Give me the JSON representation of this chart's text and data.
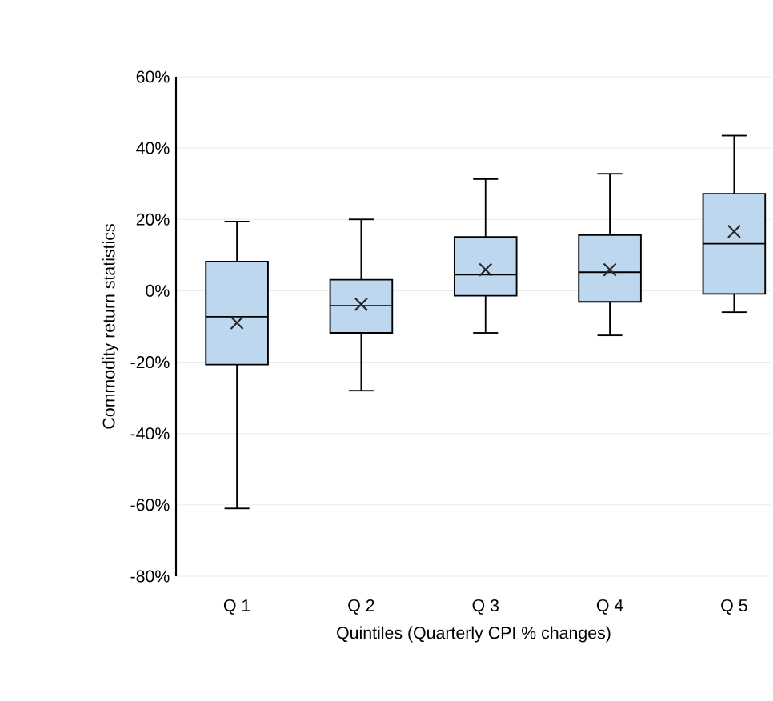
{
  "chart_data": {
    "type": "box",
    "xlabel": "Quintiles (Quarterly CPI % changes)",
    "ylabel": "Commodity return statistics",
    "categories": [
      "Q 1",
      "Q 2",
      "Q 3",
      "Q 4",
      "Q 5"
    ],
    "series": [
      {
        "color": "#bdd7ee",
        "boxes": [
          {
            "low": -61,
            "q1": -20.7,
            "median": -7.3,
            "q3": 8.2,
            "high": 19.4,
            "mean": -9
          },
          {
            "low": -28,
            "q1": -11.8,
            "median": -4.2,
            "q3": 3.1,
            "high": 20,
            "mean": -3.8
          },
          {
            "low": -11.8,
            "q1": -1.4,
            "median": 4.5,
            "q3": 15.1,
            "high": 31.3,
            "mean": 5.9
          },
          {
            "low": -12.5,
            "q1": -3.1,
            "median": 5.2,
            "q3": 15.6,
            "high": 32.8,
            "mean": 5.9
          },
          {
            "low": -6,
            "q1": -0.9,
            "median": 13.2,
            "q3": 27.2,
            "high": 43.5,
            "mean": 16.6
          }
        ]
      }
    ],
    "ylim": [
      -80,
      60
    ],
    "yticks": [
      {
        "value": -80,
        "label": "-80%"
      },
      {
        "value": -60,
        "label": "-60%"
      },
      {
        "value": -40,
        "label": "-40%"
      },
      {
        "value": -20,
        "label": "-20%"
      },
      {
        "value": 0,
        "label": "0%"
      },
      {
        "value": 20,
        "label": "20%"
      },
      {
        "value": 40,
        "label": "40%"
      },
      {
        "value": 60,
        "label": "60%"
      }
    ],
    "grid": "y",
    "marker": "cross"
  }
}
